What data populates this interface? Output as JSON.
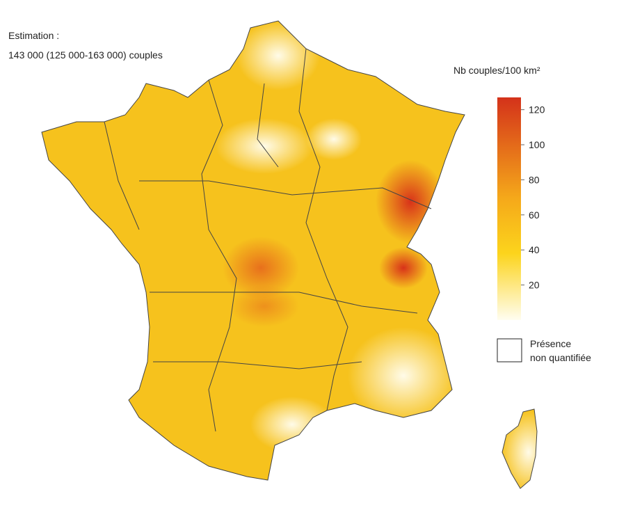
{
  "header": {
    "line1": "Estimation :",
    "line2": "143 000 (125 000-163 000) couples"
  },
  "legend": {
    "title": "Nb couples/100 km²",
    "range": [
      0,
      127
    ],
    "ticks": [
      20,
      40,
      60,
      80,
      100,
      120
    ],
    "absent_label_1": "Présence",
    "absent_label_2": "non quantifiée"
  }
}
